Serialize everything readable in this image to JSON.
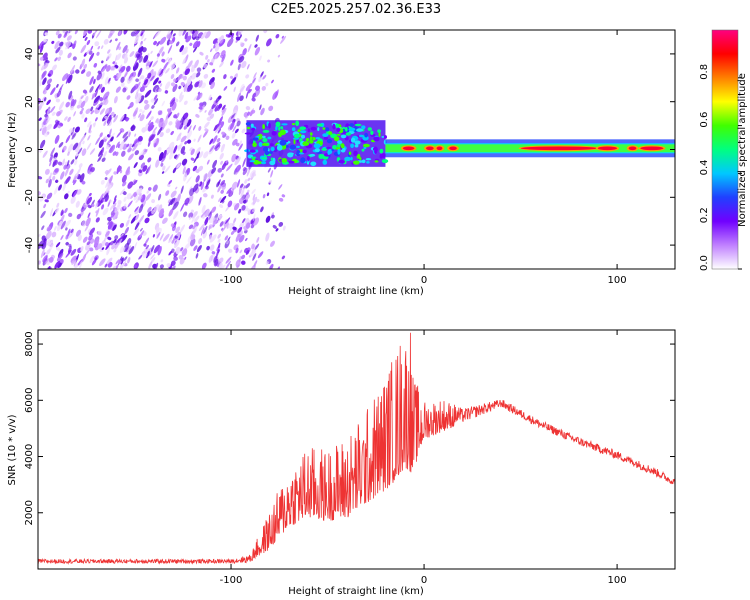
{
  "title": "C2E5.2025.257.02.36.E33",
  "chart_data": [
    {
      "type": "heatmap",
      "name": "spectrogram",
      "xlabel": "Height of straight line (km)",
      "ylabel": "Frequency (Hz)",
      "xlim": [
        -200,
        130
      ],
      "ylim": [
        -50,
        50
      ],
      "xticks": [
        -100,
        0,
        100
      ],
      "xtick_labels": [
        "-100",
        "0",
        "100"
      ],
      "yticks": [
        -40,
        -20,
        0,
        20,
        40
      ],
      "ytick_labels": [
        "-40",
        "-20",
        "0",
        "20",
        "40"
      ],
      "noise_region_x": [
        -200,
        -80
      ],
      "band_segments": [
        {
          "x0": -92,
          "x1": -20,
          "f_lo": -6,
          "f_hi": 11
        },
        {
          "x0": -20,
          "x1": 130,
          "f_lo": -2,
          "f_hi": 3
        }
      ],
      "colorbar": {
        "label": "Normalized spectral amplitude",
        "range": [
          0,
          1
        ],
        "ticks": [
          0.0,
          0.2,
          0.4,
          0.6,
          0.8
        ],
        "tick_labels": [
          "0.0",
          "0.2",
          "0.4",
          "0.6",
          "0.8"
        ]
      },
      "colormap": [
        "#ffffff",
        "#c080ff",
        "#7000ff",
        "#2040ff",
        "#00c8ff",
        "#00ff80",
        "#40ff00",
        "#ffff00",
        "#ff8000",
        "#ff0000",
        "#ff0080"
      ]
    },
    {
      "type": "line",
      "name": "snr",
      "xlabel": "Height of straight line (km)",
      "ylabel": "SNR (10 * v/v)",
      "xlim": [
        -200,
        130
      ],
      "ylim": [
        0,
        8500
      ],
      "xticks": [
        -100,
        0,
        100
      ],
      "xtick_labels": [
        "-100",
        "0",
        "100"
      ],
      "yticks": [
        2000,
        4000,
        6000,
        8000
      ],
      "ytick_labels": [
        "2000",
        "4000",
        "6000",
        "8000"
      ],
      "color": "#ee3333",
      "envelope": [
        {
          "x": -200,
          "base": 200,
          "amp": 150
        },
        {
          "x": -100,
          "base": 200,
          "amp": 150
        },
        {
          "x": -90,
          "base": 220,
          "amp": 300
        },
        {
          "x": -80,
          "base": 700,
          "amp": 1400
        },
        {
          "x": -70,
          "base": 1500,
          "amp": 2200
        },
        {
          "x": -60,
          "base": 1800,
          "amp": 2600
        },
        {
          "x": -50,
          "base": 1700,
          "amp": 2600
        },
        {
          "x": -40,
          "base": 1800,
          "amp": 3000
        },
        {
          "x": -30,
          "base": 2300,
          "amp": 3400
        },
        {
          "x": -20,
          "base": 2800,
          "amp": 4200
        },
        {
          "x": -14,
          "base": 3200,
          "amp": 4800
        },
        {
          "x": -10,
          "base": 3600,
          "amp": 5200
        },
        {
          "x": -6,
          "base": 3400,
          "amp": 3600
        },
        {
          "x": 0,
          "base": 4600,
          "amp": 1400
        },
        {
          "x": 10,
          "base": 4900,
          "amp": 1200
        },
        {
          "x": 20,
          "base": 5200,
          "amp": 500
        },
        {
          "x": 40,
          "base": 5750,
          "amp": 300
        },
        {
          "x": 60,
          "base": 5000,
          "amp": 300
        },
        {
          "x": 80,
          "base": 4400,
          "amp": 300
        },
        {
          "x": 100,
          "base": 3900,
          "amp": 300
        },
        {
          "x": 120,
          "base": 3300,
          "amp": 300
        },
        {
          "x": 130,
          "base": 2950,
          "amp": 250
        }
      ],
      "peak": {
        "x": -7,
        "y": 8400
      }
    }
  ]
}
